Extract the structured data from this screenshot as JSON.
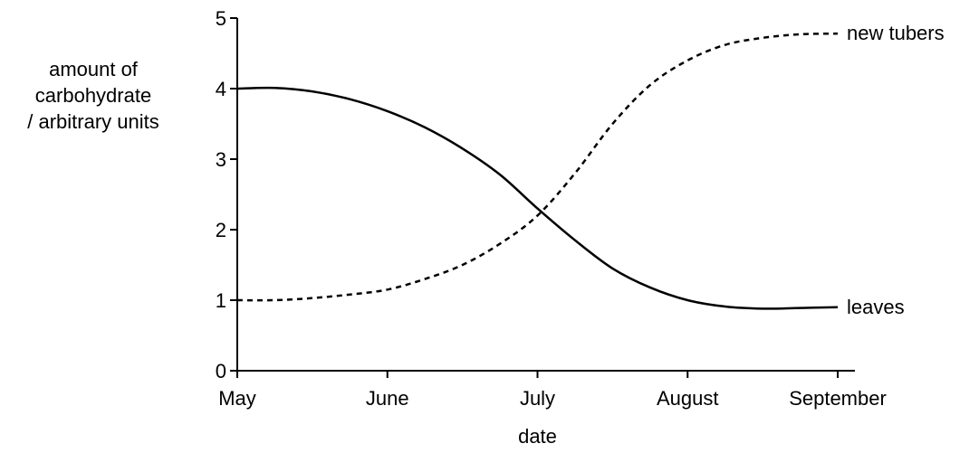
{
  "chart_data": {
    "type": "line",
    "xlabel": "date",
    "ylabel_lines": [
      "amount of",
      "carbohydrate",
      "/ arbitrary units"
    ],
    "categories": [
      "May",
      "June",
      "July",
      "August",
      "September"
    ],
    "yticks": [
      "0",
      "1",
      "2",
      "3",
      "4",
      "5"
    ],
    "ylim": [
      0,
      5
    ],
    "xlim": [
      0,
      4
    ],
    "grid": false,
    "series": [
      {
        "name": "new tubers",
        "style": "dashed",
        "color": "#000000",
        "x": [
          0,
          0.25,
          0.5,
          0.75,
          1,
          1.25,
          1.5,
          1.75,
          2,
          2.25,
          2.5,
          2.75,
          3,
          3.25,
          3.5,
          3.75,
          4
        ],
        "y": [
          1.0,
          1.0,
          1.03,
          1.08,
          1.15,
          1.3,
          1.5,
          1.8,
          2.2,
          2.8,
          3.5,
          4.05,
          4.4,
          4.62,
          4.72,
          4.77,
          4.78
        ]
      },
      {
        "name": "leaves",
        "style": "solid",
        "color": "#000000",
        "x": [
          0,
          0.25,
          0.5,
          0.75,
          1,
          1.25,
          1.5,
          1.75,
          2,
          2.25,
          2.5,
          2.75,
          3,
          3.25,
          3.5,
          3.75,
          4
        ],
        "y": [
          4.0,
          4.01,
          3.96,
          3.85,
          3.68,
          3.45,
          3.15,
          2.78,
          2.3,
          1.85,
          1.45,
          1.18,
          1.0,
          0.91,
          0.88,
          0.89,
          0.9
        ]
      }
    ]
  }
}
